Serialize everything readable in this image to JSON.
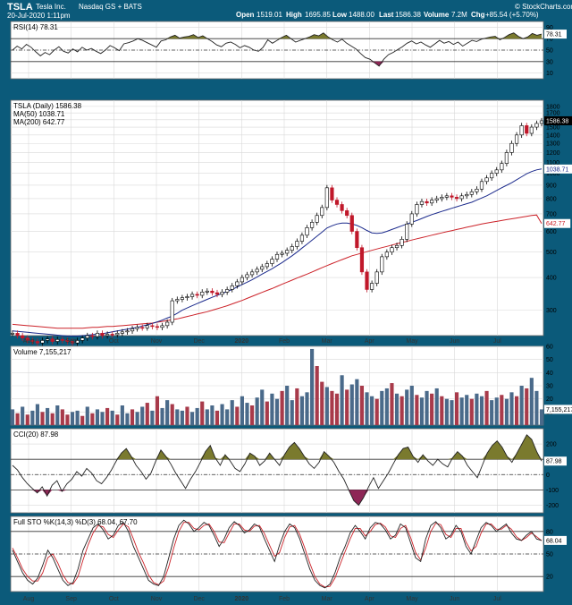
{
  "header": {
    "symbol": "TSLA",
    "company": "Tesla Inc.",
    "exchange": "Nasdaq GS + BATS",
    "date_time": "20-Jul-2020 1:11pm",
    "watermark": "© StockCharts.com",
    "open_label": "Open",
    "open": "1519.01",
    "high_label": "High",
    "high": "1695.85",
    "low_label": "Low",
    "low": "1488.00",
    "last_label": "Last",
    "last": "1586.38",
    "volume_label": "Volume",
    "volume": "7.2M",
    "chg_label": "Chg",
    "chg": "+85.54 (+5.70%)"
  },
  "colors": {
    "frame": "#0b5a7a",
    "panel_bg": "#ffffff",
    "grid": "#d9d9d9",
    "price_up": "#000000",
    "price_down": "#c0182a",
    "ma50": "#1b2a8c",
    "ma200": "#cc2229",
    "fill_overbought": "#7a7a2e",
    "fill_oversold": "#8e2656",
    "vol_up": "#4a6a8a",
    "vol_down": "#a83a4a",
    "stoch_d": "#cc2229"
  },
  "x_axis": {
    "months": [
      "Aug",
      "Sep",
      "Oct",
      "Nov",
      "Dec",
      "2020",
      "Feb",
      "Mar",
      "Apr",
      "May",
      "Jun",
      "Jul"
    ]
  },
  "chart_data": [
    {
      "type": "line",
      "name_label": "RSI(14) 78.31",
      "last_tag": "78.31",
      "ylim": [
        0,
        100
      ],
      "yticks": [
        90,
        70,
        50,
        30,
        10
      ],
      "levels": [
        70,
        50,
        30
      ],
      "values": [
        50,
        57,
        52,
        60,
        55,
        47,
        40,
        46,
        42,
        50,
        56,
        48,
        45,
        52,
        47,
        55,
        50,
        53,
        48,
        44,
        50,
        58,
        54,
        49,
        61,
        63,
        66,
        70,
        67,
        63,
        59,
        55,
        66,
        68,
        73,
        76,
        71,
        73,
        74,
        77,
        72,
        75,
        70,
        65,
        59,
        56,
        62,
        64,
        60,
        54,
        58,
        55,
        50,
        48,
        55,
        68,
        62,
        67,
        72,
        76,
        70,
        64,
        67,
        70,
        73,
        77,
        75,
        80,
        73,
        68,
        64,
        69,
        62,
        57,
        52,
        44,
        37,
        34,
        28,
        22,
        34,
        42,
        46,
        51,
        56,
        62,
        66,
        61,
        64,
        59,
        55,
        61,
        67,
        62,
        65,
        60,
        64,
        57,
        62,
        67,
        65,
        69,
        71,
        73,
        74,
        68,
        72,
        77,
        80,
        74,
        70,
        73,
        79,
        76,
        78
      ]
    },
    {
      "type": "line",
      "name_label": "TSLA (Daily) 1586.38",
      "ma50_label": "MA(50) 1038.71",
      "ma200_label": "MA(200) 642.77",
      "last_tag": "1586.38",
      "ma50_tag": "1038.71",
      "ma200_tag": "642.77",
      "scale": "log",
      "ylim": [
        240,
        1900
      ],
      "yticks": [
        1800,
        1700,
        1600,
        1500,
        1400,
        1300,
        1200,
        1100,
        1000,
        900,
        800,
        700,
        600,
        500,
        400,
        300
      ],
      "price": [
        245,
        240,
        235,
        230,
        228,
        225,
        230,
        233,
        228,
        232,
        230,
        228,
        225,
        230,
        235,
        240,
        238,
        245,
        240,
        243,
        242,
        245,
        248,
        250,
        255,
        258,
        257,
        262,
        260,
        258,
        262,
        270,
        326,
        330,
        335,
        338,
        345,
        342,
        352,
        355,
        350,
        345,
        352,
        360,
        372,
        385,
        400,
        410,
        420,
        430,
        440,
        452,
        470,
        490,
        495,
        508,
        525,
        550,
        580,
        620,
        650,
        690,
        740,
        880,
        790,
        760,
        720,
        690,
        600,
        520,
        420,
        360,
        380,
        420,
        480,
        500,
        520,
        530,
        560,
        640,
        700,
        760,
        780,
        770,
        790,
        800,
        810,
        820,
        810,
        800,
        820,
        830,
        850,
        870,
        930,
        960,
        1000,
        1030,
        1090,
        1200,
        1300,
        1400,
        1520,
        1420,
        1500,
        1550,
        1586
      ],
      "ma50": [
        250,
        249,
        248,
        247,
        246,
        245,
        244,
        243,
        242,
        241,
        240,
        239,
        239,
        239,
        240,
        241,
        242,
        243,
        244,
        246,
        248,
        250,
        252,
        254,
        256,
        258,
        261,
        264,
        267,
        271,
        275,
        280,
        285,
        292,
        300,
        306,
        312,
        318,
        324,
        330,
        336,
        342,
        348,
        354,
        360,
        368,
        376,
        384,
        392,
        402,
        412,
        422,
        432,
        444,
        456,
        470,
        484,
        500,
        518,
        536,
        555,
        575,
        596,
        618,
        630,
        640,
        645,
        645,
        640,
        632,
        620,
        605,
        592,
        590,
        592,
        600,
        610,
        620,
        630,
        640,
        650,
        660,
        672,
        684,
        695,
        705,
        715,
        725,
        735,
        745,
        755,
        765,
        775,
        790,
        805,
        820,
        840,
        860,
        880,
        900,
        920,
        945,
        970,
        995,
        1015,
        1030,
        1038
      ],
      "ma200": [
        265,
        264,
        263,
        262,
        261,
        260,
        259,
        258,
        257,
        256,
        256,
        256,
        256,
        256,
        256,
        257,
        258,
        258,
        259,
        260,
        260,
        261,
        262,
        263,
        264,
        265,
        266,
        267,
        268,
        270,
        272,
        274,
        276,
        278,
        281,
        284,
        287,
        290,
        293,
        296,
        300,
        304,
        308,
        312,
        317,
        322,
        327,
        333,
        339,
        345,
        351,
        357,
        363,
        370,
        377,
        384,
        391,
        398,
        405,
        412,
        420,
        428,
        436,
        444,
        452,
        460,
        468,
        476,
        484,
        490,
        496,
        502,
        508,
        514,
        520,
        526,
        532,
        538,
        544,
        550,
        556,
        562,
        568,
        574,
        580,
        586,
        592,
        598,
        604,
        610,
        616,
        622,
        628,
        634,
        640,
        645,
        650,
        655,
        660,
        665,
        670,
        675,
        680,
        685,
        690,
        693,
        643
      ]
    },
    {
      "type": "bar",
      "name_label": "Volume 7,155,217",
      "last_tag": "7,155,217",
      "unit": "M",
      "ylim": [
        0,
        60
      ],
      "yticks": [
        60,
        50,
        40,
        30,
        20,
        10
      ],
      "values": [
        12,
        9,
        14,
        8,
        11,
        16,
        10,
        13,
        9,
        15,
        12,
        8,
        10,
        11,
        7,
        14,
        9,
        12,
        10,
        13,
        11,
        8,
        15,
        9,
        12,
        10,
        14,
        17,
        11,
        22,
        13,
        19,
        16,
        12,
        11,
        14,
        10,
        13,
        18,
        12,
        15,
        11,
        16,
        12,
        19,
        14,
        22,
        17,
        15,
        21,
        27,
        18,
        24,
        20,
        26,
        30,
        19,
        28,
        22,
        25,
        58,
        45,
        33,
        29,
        26,
        24,
        38,
        27,
        31,
        35,
        30,
        25,
        22,
        20,
        26,
        28,
        32,
        24,
        22,
        27,
        30,
        23,
        21,
        26,
        24,
        28,
        22,
        20,
        19,
        25,
        21,
        23,
        20,
        24,
        22,
        26,
        19,
        21,
        23,
        20,
        25,
        22,
        30,
        28,
        36,
        26,
        12
      ],
      "up": [
        1,
        0,
        1,
        0,
        1,
        1,
        0,
        1,
        0,
        1,
        0,
        0,
        1,
        1,
        0,
        1,
        0,
        1,
        1,
        0,
        1,
        0,
        1,
        1,
        0,
        1,
        1,
        0,
        1,
        0,
        1,
        1,
        0,
        1,
        1,
        0,
        1,
        1,
        0,
        1,
        1,
        0,
        1,
        1,
        1,
        0,
        1,
        1,
        0,
        1,
        1,
        0,
        1,
        1,
        0,
        1,
        1,
        0,
        1,
        1,
        1,
        0,
        0,
        1,
        0,
        0,
        1,
        0,
        1,
        1,
        0,
        1,
        1,
        0,
        1,
        1,
        0,
        1,
        0,
        1,
        1,
        0,
        1,
        1,
        0,
        1,
        0,
        1,
        1,
        0,
        1,
        1,
        0,
        1,
        1,
        0,
        1,
        1,
        0,
        1,
        1,
        0,
        1,
        0,
        1,
        1,
        1
      ]
    },
    {
      "type": "line",
      "name_label": "CCI(20) 87.98",
      "last_tag": "87.98",
      "ylim": [
        -250,
        300
      ],
      "yticks": [
        200,
        100,
        0,
        -100,
        -200
      ],
      "levels": [
        100,
        0,
        -100
      ],
      "values": [
        60,
        30,
        -20,
        -60,
        -90,
        -120,
        -80,
        -140,
        -70,
        -40,
        -110,
        -60,
        -30,
        20,
        -10,
        40,
        10,
        -40,
        -60,
        -20,
        30,
        90,
        140,
        170,
        120,
        60,
        20,
        -30,
        10,
        90,
        160,
        120,
        70,
        10,
        -40,
        -90,
        -30,
        20,
        80,
        150,
        190,
        110,
        60,
        130,
        90,
        40,
        20,
        70,
        140,
        120,
        60,
        90,
        140,
        100,
        60,
        130,
        180,
        210,
        170,
        120,
        70,
        40,
        80,
        150,
        120,
        80,
        20,
        -30,
        -100,
        -170,
        -200,
        -150,
        -80,
        -20,
        -90,
        -40,
        10,
        70,
        130,
        170,
        180,
        120,
        80,
        130,
        90,
        60,
        100,
        70,
        50,
        110,
        150,
        120,
        60,
        20,
        -20,
        60,
        140,
        190,
        220,
        180,
        120,
        80,
        140,
        200,
        260,
        230,
        150,
        88
      ]
    },
    {
      "type": "line",
      "name_label": "Full STO %K(14,3) %D(3) 68.04, 67.70",
      "last_tag": "68.04",
      "ylim": [
        0,
        100
      ],
      "yticks": [
        80,
        50,
        20
      ],
      "levels": [
        80,
        50,
        20
      ],
      "k": [
        55,
        40,
        25,
        15,
        10,
        18,
        35,
        55,
        45,
        30,
        15,
        8,
        12,
        30,
        55,
        70,
        85,
        90,
        82,
        70,
        75,
        88,
        92,
        80,
        60,
        45,
        30,
        15,
        10,
        8,
        20,
        45,
        70,
        88,
        95,
        90,
        80,
        85,
        92,
        88,
        75,
        60,
        70,
        85,
        93,
        88,
        78,
        82,
        90,
        86,
        70,
        55,
        40,
        62,
        80,
        90,
        85,
        70,
        50,
        30,
        15,
        8,
        5,
        10,
        25,
        45,
        60,
        78,
        88,
        80,
        70,
        85,
        92,
        90,
        82,
        70,
        75,
        90,
        85,
        65,
        45,
        40,
        70,
        88,
        93,
        85,
        70,
        75,
        88,
        80,
        60,
        50,
        68,
        85,
        92,
        88,
        80,
        85,
        90,
        78,
        70,
        68,
        75,
        80,
        70,
        68
      ],
      "d": [
        58,
        45,
        30,
        20,
        14,
        14,
        25,
        45,
        50,
        38,
        22,
        12,
        10,
        20,
        42,
        62,
        78,
        88,
        86,
        76,
        72,
        82,
        90,
        86,
        70,
        52,
        38,
        22,
        12,
        9,
        14,
        33,
        58,
        80,
        92,
        92,
        84,
        82,
        88,
        90,
        80,
        66,
        65,
        78,
        90,
        90,
        82,
        80,
        87,
        88,
        77,
        62,
        47,
        52,
        72,
        86,
        88,
        76,
        58,
        38,
        20,
        10,
        6,
        7,
        18,
        36,
        53,
        70,
        84,
        84,
        74,
        80,
        89,
        91,
        86,
        74,
        72,
        84,
        88,
        72,
        52,
        42,
        58,
        80,
        91,
        89,
        76,
        72,
        84,
        84,
        66,
        54,
        60,
        78,
        90,
        90,
        83,
        83,
        88,
        83,
        73,
        68,
        72,
        78,
        73,
        67.7
      ]
    }
  ]
}
